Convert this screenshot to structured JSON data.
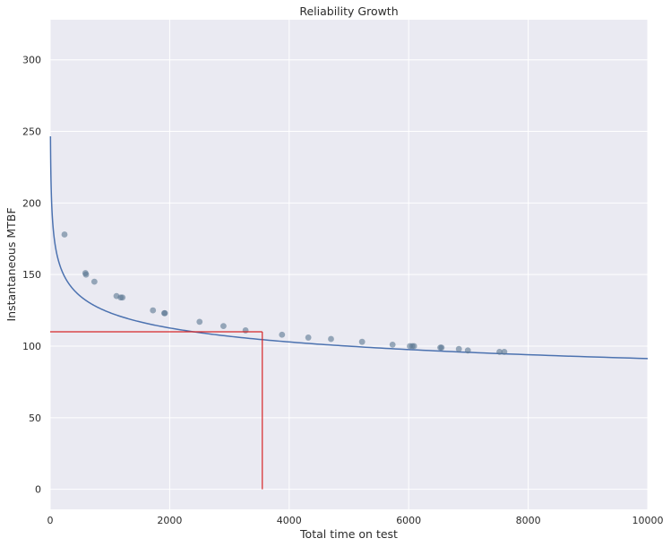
{
  "chart_data": {
    "type": "line",
    "title": "Reliability Growth",
    "xlabel": "Total time on test",
    "ylabel": "Instantaneous MTBF",
    "xlim": [
      0,
      10000
    ],
    "ylim": [
      -14,
      328
    ],
    "xticks": [
      0,
      2000,
      4000,
      6000,
      8000,
      10000
    ],
    "yticks": [
      0,
      50,
      100,
      150,
      200,
      250,
      300
    ],
    "grid": true,
    "colors": {
      "background": "#eaeaf2",
      "grid": "#ffffff",
      "curve": "#4c72b0",
      "points": "#5a7691",
      "target": "#d62728"
    },
    "series": [
      {
        "kind": "fit-curve",
        "model": "power-law",
        "coefficient": 304.3,
        "exponent": -0.1307,
        "x_range": [
          5,
          10000
        ]
      },
      {
        "kind": "observations",
        "x": [
          240,
          590,
          600,
          740,
          1110,
          1180,
          1210,
          1720,
          1910,
          1920,
          2500,
          2900,
          3270,
          3880,
          4320,
          4700,
          5220,
          5730,
          6020,
          6060,
          6090,
          6530,
          6550,
          6840,
          6990,
          7520,
          7600
        ],
        "y": [
          178,
          151,
          150,
          145,
          135,
          134,
          134,
          125,
          123,
          123,
          117,
          114,
          111,
          108,
          106,
          105,
          103,
          101,
          100,
          100,
          100,
          99,
          99,
          98,
          97,
          96,
          96
        ]
      }
    ],
    "target": {
      "x": 3550,
      "y": 110
    }
  }
}
